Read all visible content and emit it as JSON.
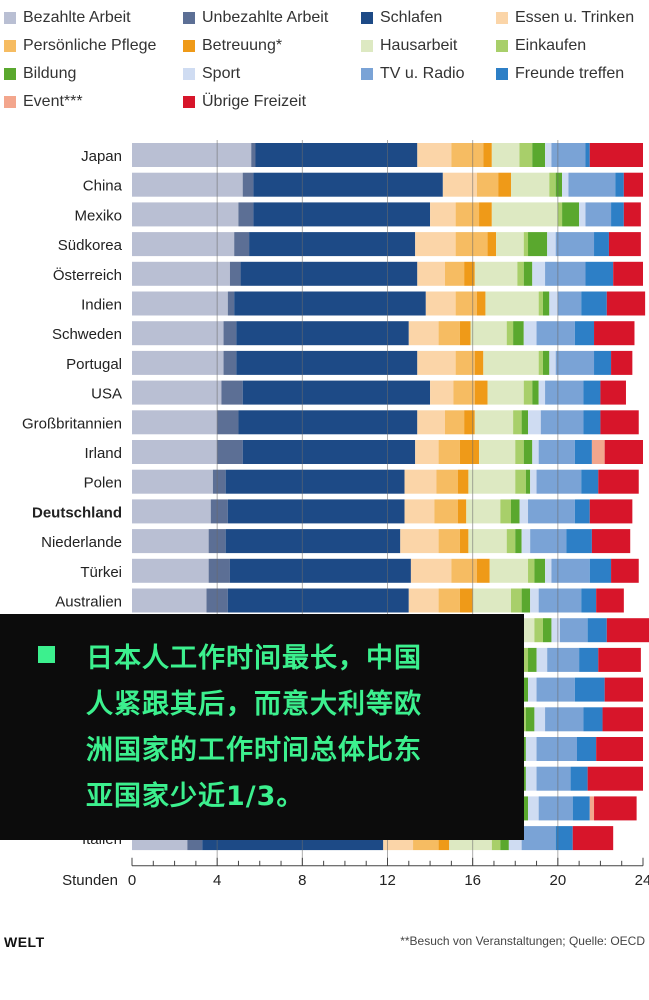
{
  "chart_data": {
    "type": "stacked-bar-horizontal",
    "xlabel": "Stunden",
    "xlim": [
      0,
      24
    ],
    "xticks": [
      0,
      4,
      8,
      12,
      16,
      20,
      24
    ],
    "grid": true,
    "legend_position": "top",
    "highlighted_category": "Deutschland",
    "series": [
      {
        "name": "Bezahlte Arbeit",
        "color": "#b9bfd3"
      },
      {
        "name": "Unbezahlte Arbeit",
        "color": "#5c6f95"
      },
      {
        "name": "Schlafen",
        "color": "#1d4a86"
      },
      {
        "name": "Essen u. Trinken",
        "color": "#fbd5a8"
      },
      {
        "name": "Persönliche Pflege",
        "color": "#f6bc62"
      },
      {
        "name": "Betreuung*",
        "color": "#ef9a18"
      },
      {
        "name": "Hausarbeit",
        "color": "#dde9c2"
      },
      {
        "name": "Einkaufen",
        "color": "#a8cf6a"
      },
      {
        "name": "Bildung",
        "color": "#5aa82e"
      },
      {
        "name": "Sport",
        "color": "#cfdcf2"
      },
      {
        "name": "TV u. Radio",
        "color": "#7aa3d6"
      },
      {
        "name": "Freunde treffen",
        "color": "#2d7fc6"
      },
      {
        "name": "Event***",
        "color": "#f3a68d"
      },
      {
        "name": "Übrige Freizeit",
        "color": "#d7152a"
      }
    ],
    "categories": [
      "Japan",
      "China",
      "Mexiko",
      "Südkorea",
      "Österreich",
      "Indien",
      "Schweden",
      "Portugal",
      "USA",
      "Großbritannien",
      "Irland",
      "Polen",
      "Deutschland",
      "Niederlande",
      "Türkei",
      "Australien",
      "",
      "",
      "",
      "",
      "",
      "",
      "",
      "Italien"
    ],
    "values": [
      [
        5.6,
        0.2,
        7.6,
        1.6,
        1.5,
        0.4,
        1.3,
        0.6,
        0.6,
        0.3,
        1.6,
        0.2,
        0.0,
        2.5
      ],
      [
        5.2,
        0.5,
        8.9,
        1.6,
        1.0,
        0.6,
        1.8,
        0.3,
        0.3,
        0.3,
        2.2,
        0.4,
        0.0,
        0.9
      ],
      [
        5.0,
        0.7,
        8.3,
        1.2,
        1.1,
        0.6,
        3.1,
        0.2,
        0.8,
        0.3,
        1.2,
        0.6,
        0.0,
        0.8
      ],
      [
        4.8,
        0.7,
        7.8,
        1.9,
        1.5,
        0.4,
        1.3,
        0.2,
        0.9,
        0.4,
        1.8,
        0.7,
        0.0,
        1.5
      ],
      [
        4.6,
        0.5,
        8.3,
        1.3,
        0.9,
        0.5,
        2.0,
        0.3,
        0.4,
        0.6,
        1.9,
        1.3,
        0.0,
        1.4
      ],
      [
        4.5,
        0.3,
        9.0,
        1.4,
        1.0,
        0.4,
        2.5,
        0.2,
        0.3,
        0.4,
        1.1,
        1.2,
        0.0,
        1.8
      ],
      [
        4.3,
        0.6,
        8.1,
        1.4,
        1.0,
        0.5,
        1.7,
        0.3,
        0.5,
        0.6,
        1.8,
        0.9,
        0.0,
        1.9
      ],
      [
        4.3,
        0.6,
        8.5,
        1.8,
        0.9,
        0.4,
        2.6,
        0.2,
        0.3,
        0.3,
        1.8,
        0.8,
        0.0,
        1.0
      ],
      [
        4.2,
        1.0,
        8.8,
        1.1,
        1.0,
        0.6,
        1.7,
        0.4,
        0.3,
        0.3,
        1.8,
        0.8,
        0.0,
        1.2
      ],
      [
        4.0,
        1.0,
        8.4,
        1.3,
        0.9,
        0.5,
        1.8,
        0.4,
        0.3,
        0.6,
        2.0,
        0.8,
        0.0,
        1.8
      ],
      [
        4.0,
        1.2,
        8.1,
        1.1,
        1.0,
        0.9,
        1.7,
        0.4,
        0.4,
        0.3,
        1.7,
        0.8,
        0.6,
        1.8
      ],
      [
        3.8,
        0.6,
        8.4,
        1.5,
        1.0,
        0.5,
        2.2,
        0.5,
        0.2,
        0.3,
        2.1,
        0.8,
        0.0,
        1.9
      ],
      [
        3.7,
        0.8,
        8.3,
        1.4,
        1.1,
        0.4,
        1.6,
        0.5,
        0.4,
        0.4,
        2.2,
        0.7,
        0.0,
        2.0
      ],
      [
        3.6,
        0.8,
        8.2,
        1.8,
        1.0,
        0.4,
        1.8,
        0.4,
        0.3,
        0.4,
        1.7,
        1.2,
        0.0,
        1.8
      ],
      [
        3.6,
        1.0,
        8.5,
        1.9,
        1.2,
        0.6,
        1.8,
        0.3,
        0.5,
        0.3,
        1.8,
        1.0,
        0.0,
        1.3
      ],
      [
        3.5,
        1.0,
        8.5,
        1.4,
        1.0,
        0.6,
        1.8,
        0.5,
        0.4,
        0.4,
        2.0,
        0.7,
        0.0,
        1.3
      ],
      [
        5.0,
        1.0,
        8.0,
        1.4,
        1.0,
        0.5,
        2.0,
        0.4,
        0.4,
        0.4,
        1.3,
        0.9,
        0.0,
        2.7
      ],
      [
        4.0,
        1.0,
        8.2,
        1.5,
        1.0,
        0.5,
        2.0,
        0.4,
        0.4,
        0.5,
        1.5,
        0.9,
        0.0,
        2.0
      ],
      [
        3.8,
        1.0,
        8.2,
        1.4,
        1.0,
        0.5,
        1.9,
        0.4,
        0.4,
        0.4,
        1.8,
        1.4,
        0.0,
        1.8
      ],
      [
        3.8,
        1.0,
        8.3,
        1.4,
        1.1,
        0.5,
        2.0,
        0.4,
        0.4,
        0.5,
        1.8,
        0.9,
        0.0,
        1.9
      ],
      [
        3.7,
        1.0,
        8.2,
        1.4,
        1.0,
        0.5,
        1.9,
        0.4,
        0.4,
        0.5,
        1.9,
        0.9,
        0.0,
        2.2
      ],
      [
        3.7,
        1.0,
        8.3,
        1.5,
        1.0,
        0.5,
        1.7,
        0.4,
        0.4,
        0.5,
        1.6,
        0.8,
        0.0,
        2.6
      ],
      [
        3.6,
        1.0,
        8.3,
        1.4,
        1.1,
        0.5,
        1.9,
        0.4,
        0.4,
        0.5,
        1.6,
        0.8,
        0.2,
        2.0
      ],
      [
        2.6,
        0.7,
        8.5,
        1.4,
        1.2,
        0.5,
        2.0,
        0.4,
        0.4,
        0.6,
        1.6,
        0.8,
        0.0,
        1.9
      ]
    ]
  },
  "overlay": {
    "caption_lines": [
      "日本人工作时间最长，中国",
      "人紧跟其后，而意大利等欧",
      "洲国家的工作时间总体比东",
      "亚国家少近1/3。"
    ]
  },
  "footer": {
    "brand": "WELT",
    "source_note": "**Besuch von Veranstaltungen; Quelle: OECD"
  }
}
